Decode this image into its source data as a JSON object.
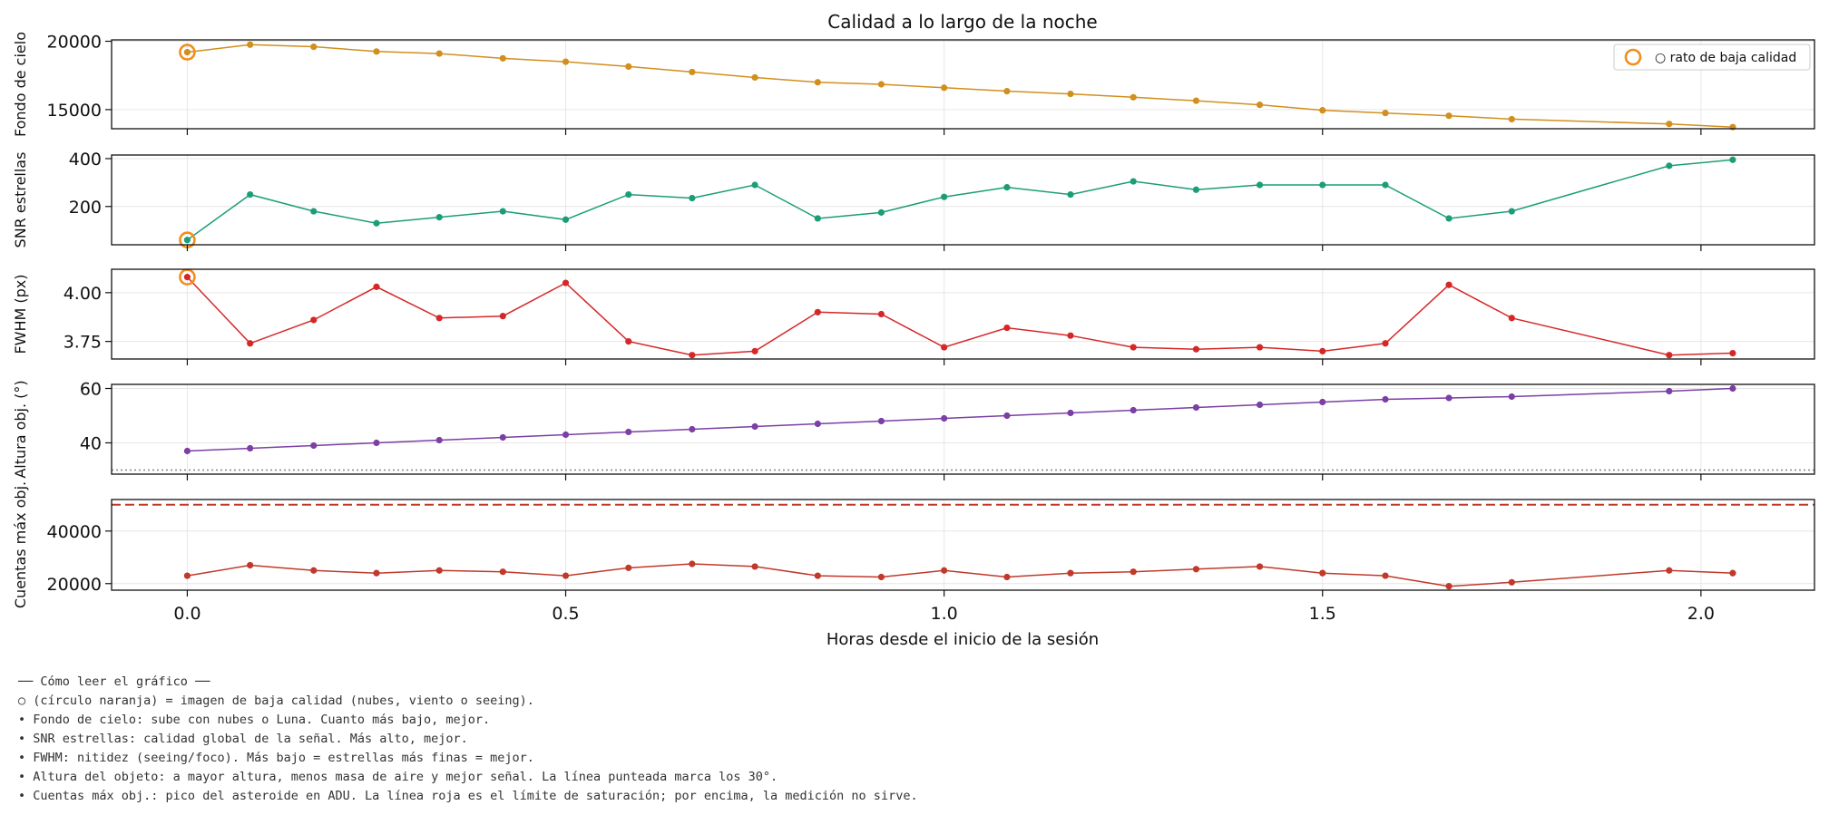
{
  "chart_data": {
    "type": "line",
    "title": "Calidad a lo largo de la noche",
    "xlabel": "Horas desde el inicio de la sesión",
    "xlim": [
      -0.1,
      2.15
    ],
    "xticks": [
      0.0,
      0.5,
      1.0,
      1.5,
      2.0
    ],
    "xtick_labels": [
      "0.0",
      "0.5",
      "1.0",
      "1.5",
      "2.0"
    ],
    "x": [
      0.0,
      0.083,
      0.167,
      0.25,
      0.333,
      0.417,
      0.5,
      0.583,
      0.667,
      0.75,
      0.833,
      0.917,
      1.0,
      1.083,
      1.167,
      1.25,
      1.333,
      1.417,
      1.5,
      1.583,
      1.667,
      1.75,
      1.958,
      2.042
    ],
    "legend": {
      "label": "○ rato de baja calidad",
      "placement": "top-right",
      "marker_color": "#f28e1c"
    },
    "low_quality_x": [
      0.0
    ],
    "panels": [
      {
        "key": "sky",
        "ylabel": "Fondo de cielo",
        "color": "#d18f1d",
        "ylim": [
          13600,
          20100
        ],
        "yticks": [
          15000,
          20000
        ],
        "ytick_labels": [
          "15000",
          "20000"
        ],
        "values": [
          19200,
          19750,
          19600,
          19250,
          19100,
          18750,
          18500,
          18150,
          17750,
          17350,
          17000,
          16850,
          16600,
          16350,
          16150,
          15900,
          15650,
          15350,
          14950,
          14750,
          14550,
          14300,
          13950,
          13720
        ],
        "low_quality_points": [
          0
        ]
      },
      {
        "key": "snr",
        "ylabel": "SNR estrellas",
        "color": "#1b9e77",
        "ylim": [
          40,
          415
        ],
        "yticks": [
          200,
          400
        ],
        "ytick_labels": [
          "200",
          "400"
        ],
        "values": [
          60,
          250,
          180,
          130,
          155,
          180,
          145,
          250,
          235,
          290,
          150,
          175,
          240,
          280,
          250,
          305,
          270,
          290,
          290,
          290,
          150,
          180,
          370,
          395
        ],
        "low_quality_points": [
          0
        ]
      },
      {
        "key": "fwhm",
        "ylabel": "FWHM (px)",
        "color": "#d62728",
        "ylim": [
          3.66,
          4.12
        ],
        "yticks": [
          3.75,
          4.0
        ],
        "ytick_labels": [
          "3.75",
          "4.00"
        ],
        "values": [
          4.08,
          3.74,
          3.86,
          4.03,
          3.87,
          3.88,
          4.05,
          3.75,
          3.68,
          3.7,
          3.9,
          3.89,
          3.72,
          3.82,
          3.78,
          3.72,
          3.71,
          3.72,
          3.7,
          3.74,
          4.04,
          3.87,
          3.68,
          3.69
        ],
        "low_quality_points": [
          0
        ]
      },
      {
        "key": "alt",
        "ylabel": "Altura obj. (°)",
        "color": "#7b3fa5",
        "ylim": [
          28.5,
          61.5
        ],
        "yticks": [
          40,
          60
        ],
        "ytick_labels": [
          "40",
          "60"
        ],
        "values": [
          37,
          38,
          39,
          40,
          41,
          42,
          43,
          44,
          45,
          46,
          47,
          48,
          49,
          50,
          51,
          52,
          53,
          54,
          55,
          56,
          56.5,
          57,
          59,
          60
        ],
        "reference_line": {
          "value": 30,
          "style": "dotted",
          "color": "#888888"
        }
      },
      {
        "key": "peak",
        "ylabel": "Cuentas máx obj.",
        "color": "#c0392b",
        "ylim": [
          17500,
          52000
        ],
        "yticks": [
          20000,
          40000
        ],
        "ytick_labels": [
          "20000",
          "40000"
        ],
        "values": [
          23000,
          27000,
          25000,
          24000,
          25000,
          24500,
          23000,
          26000,
          27500,
          26500,
          23000,
          22500,
          25000,
          22500,
          24000,
          24500,
          25500,
          26500,
          24000,
          23000,
          19000,
          20500,
          25000,
          24000
        ],
        "reference_line": {
          "value": 50000,
          "style": "dashed",
          "color": "#c0392b"
        }
      }
    ]
  },
  "notes": {
    "heading": "── Cómo leer el gráfico ──",
    "lines": [
      "○ (círculo naranja) = imagen de baja calidad (nubes, viento o seeing).",
      "• Fondo de cielo: sube con nubes o Luna. Cuanto más bajo, mejor.",
      "• SNR estrellas: calidad global de la señal. Más alto, mejor.",
      "• FWHM: nitidez (seeing/foco). Más bajo = estrellas más finas = mejor.",
      "• Altura del objeto: a mayor altura, menos masa de aire y mejor señal. La línea punteada marca los 30°.",
      "• Cuentas máx obj.: pico del asteroide en ADU. La línea roja es el límite de saturación; por encima, la medición no sirve."
    ]
  }
}
